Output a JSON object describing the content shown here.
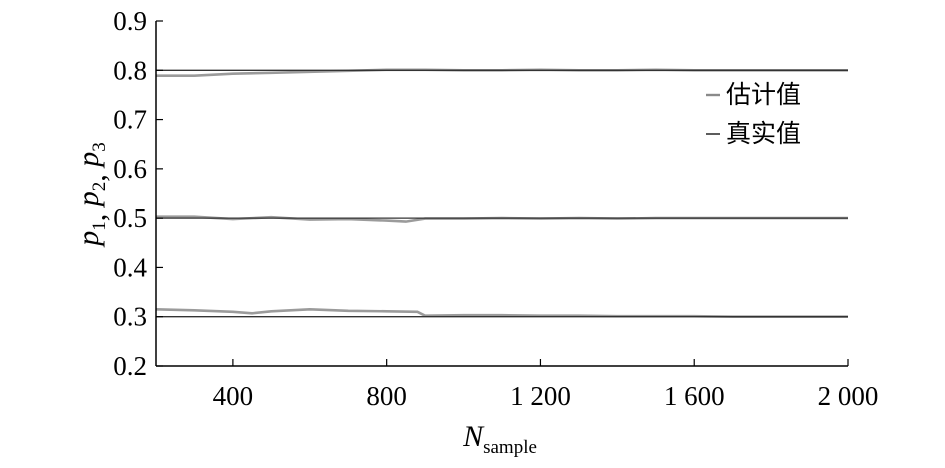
{
  "chart_data": {
    "type": "line",
    "xlabel": {
      "main": "N",
      "sub": "sample"
    },
    "ylabel": {
      "vars": [
        "p",
        "p",
        "p"
      ],
      "subs": [
        "1",
        "2",
        "3"
      ],
      "sep": ", "
    },
    "xlim": [
      200,
      2000
    ],
    "ylim": [
      0.2,
      0.9
    ],
    "xticks": [
      400,
      800,
      1200,
      1600,
      2000
    ],
    "xtick_labels": [
      "400",
      "800",
      "1 200",
      "1 600",
      "2 000"
    ],
    "yticks": [
      0.2,
      0.3,
      0.4,
      0.5,
      0.6,
      0.7,
      0.8,
      0.9
    ],
    "ytick_labels": [
      "0.2",
      "0.3",
      "0.4",
      "0.5",
      "0.6",
      "0.7",
      "0.8",
      "0.9"
    ],
    "legend": {
      "placement": "top-right",
      "entries": [
        "估计值",
        "真实值"
      ]
    },
    "grid": false,
    "colors": {
      "estimate": "#8a8a8a",
      "true": "#333333",
      "axis": "#000000"
    },
    "series": [
      {
        "name": "估计值",
        "group": "p1",
        "x": [
          200,
          300,
          400,
          500,
          600,
          700,
          800,
          900,
          1000,
          1100,
          1200,
          1300,
          1400,
          1500,
          1600,
          1700,
          1800,
          1900,
          2000
        ],
        "y": [
          0.789,
          0.789,
          0.793,
          0.795,
          0.797,
          0.799,
          0.801,
          0.801,
          0.8,
          0.8,
          0.801,
          0.8,
          0.8,
          0.801,
          0.8,
          0.8,
          0.8,
          0.8,
          0.8
        ]
      },
      {
        "name": "估计值",
        "group": "p2",
        "x": [
          200,
          300,
          400,
          500,
          600,
          700,
          800,
          850,
          900,
          1000,
          1100,
          1200,
          1300,
          1400,
          1500,
          1600,
          1700,
          1800,
          1900,
          2000
        ],
        "y": [
          0.503,
          0.503,
          0.498,
          0.502,
          0.497,
          0.498,
          0.495,
          0.493,
          0.499,
          0.499,
          0.5,
          0.499,
          0.5,
          0.499,
          0.5,
          0.5,
          0.5,
          0.5,
          0.5,
          0.5
        ]
      },
      {
        "name": "估计值",
        "group": "p3",
        "x": [
          200,
          300,
          400,
          450,
          500,
          600,
          700,
          800,
          880,
          900,
          1000,
          1100,
          1200,
          1300,
          1400,
          1500,
          1600,
          1700,
          1800,
          1900,
          2000
        ],
        "y": [
          0.315,
          0.313,
          0.31,
          0.307,
          0.311,
          0.315,
          0.312,
          0.311,
          0.31,
          0.302,
          0.303,
          0.303,
          0.302,
          0.302,
          0.301,
          0.301,
          0.301,
          0.3,
          0.3,
          0.3,
          0.3
        ]
      },
      {
        "name": "真实值",
        "group": "p1",
        "x": [
          200,
          2000
        ],
        "y": [
          0.8,
          0.8
        ]
      },
      {
        "name": "真实值",
        "group": "p2",
        "x": [
          200,
          2000
        ],
        "y": [
          0.5,
          0.5
        ]
      },
      {
        "name": "真实值",
        "group": "p3",
        "x": [
          200,
          2000
        ],
        "y": [
          0.3,
          0.3
        ]
      }
    ]
  }
}
